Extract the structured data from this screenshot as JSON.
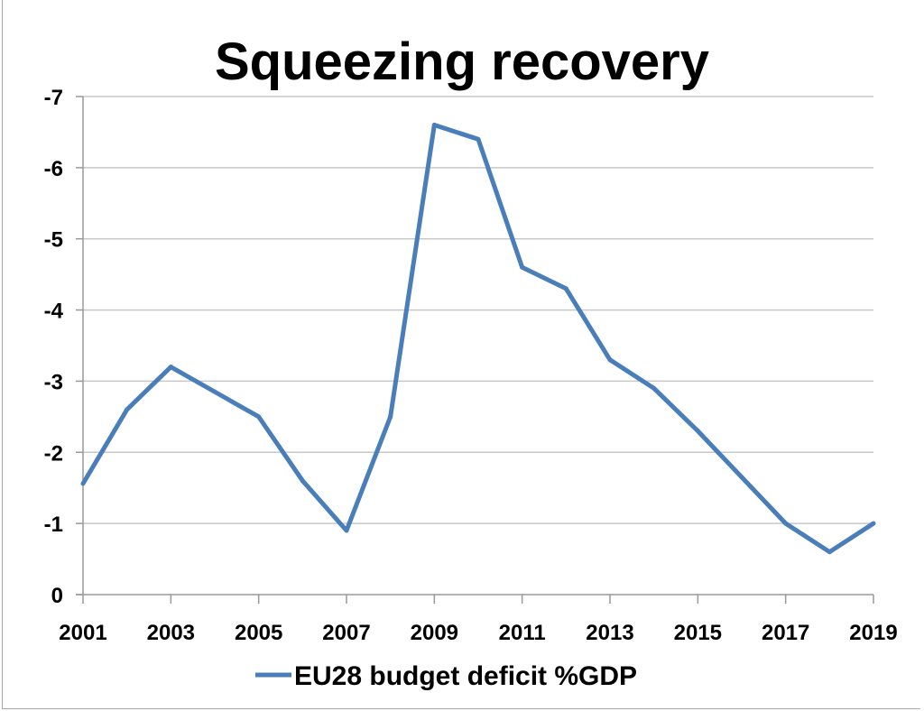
{
  "chart_data": {
    "type": "line",
    "title": "Squeezing recovery",
    "xlabel": "",
    "ylabel": "",
    "x": [
      2001,
      2002,
      2003,
      2004,
      2005,
      2006,
      2007,
      2008,
      2009,
      2010,
      2011,
      2012,
      2013,
      2014,
      2015,
      2016,
      2017,
      2018,
      2019
    ],
    "x_tick_labels": [
      "2001",
      "2003",
      "2005",
      "2007",
      "2009",
      "2011",
      "2013",
      "2015",
      "2017",
      "2019"
    ],
    "y_ticks": [
      0,
      -1,
      -2,
      -3,
      -4,
      -5,
      -6,
      -7
    ],
    "y_tick_labels": [
      "0",
      "-1",
      "-2",
      "-3",
      "-4",
      "-5",
      "-6",
      "-7"
    ],
    "ylim": [
      0,
      -7
    ],
    "y_axis_reversed": true,
    "grid": "horizontal",
    "legend_position": "bottom",
    "series": [
      {
        "name": "EU28 budget deficit %GDP",
        "color": "#4a7ebb",
        "values": [
          -1.56,
          -2.6,
          -3.2,
          -2.85,
          -2.5,
          -1.6,
          -0.9,
          -2.5,
          -6.6,
          -6.4,
          -4.6,
          -4.3,
          -3.3,
          -2.9,
          -2.3,
          -1.65,
          -1.0,
          -0.6,
          -1.0
        ]
      }
    ]
  }
}
